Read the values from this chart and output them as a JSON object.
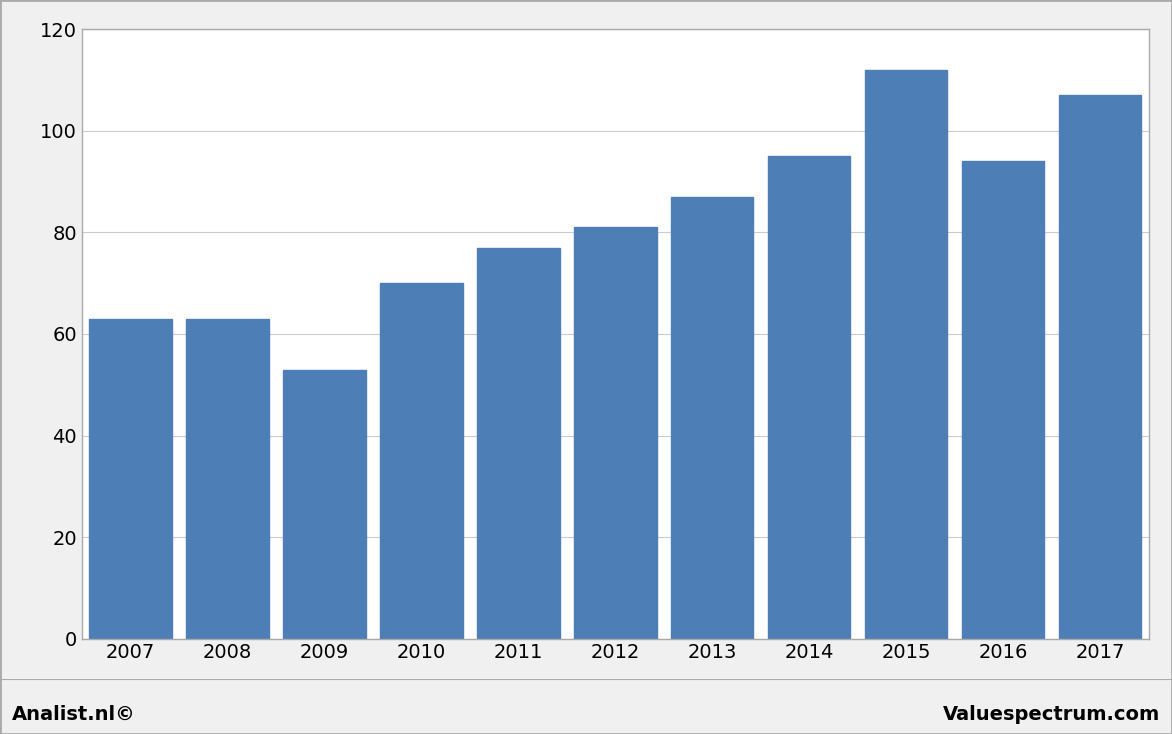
{
  "categories": [
    "2007",
    "2008",
    "2009",
    "2010",
    "2011",
    "2012",
    "2013",
    "2014",
    "2015",
    "2016",
    "2017"
  ],
  "values": [
    63,
    63,
    53,
    70,
    77,
    81,
    87,
    95,
    112,
    94,
    107
  ],
  "bar_color": "#4d7eb5",
  "ylim": [
    0,
    120
  ],
  "yticks": [
    0,
    20,
    40,
    60,
    80,
    100,
    120
  ],
  "background_color": "#f0f0f0",
  "plot_bg_color": "#ffffff",
  "grid_color": "#cccccc",
  "border_color": "#aaaaaa",
  "footer_left": "Analist.nl©",
  "footer_right": "Valuespectrum.com",
  "footer_fontsize": 14,
  "tick_fontsize": 14,
  "bar_width": 0.85
}
